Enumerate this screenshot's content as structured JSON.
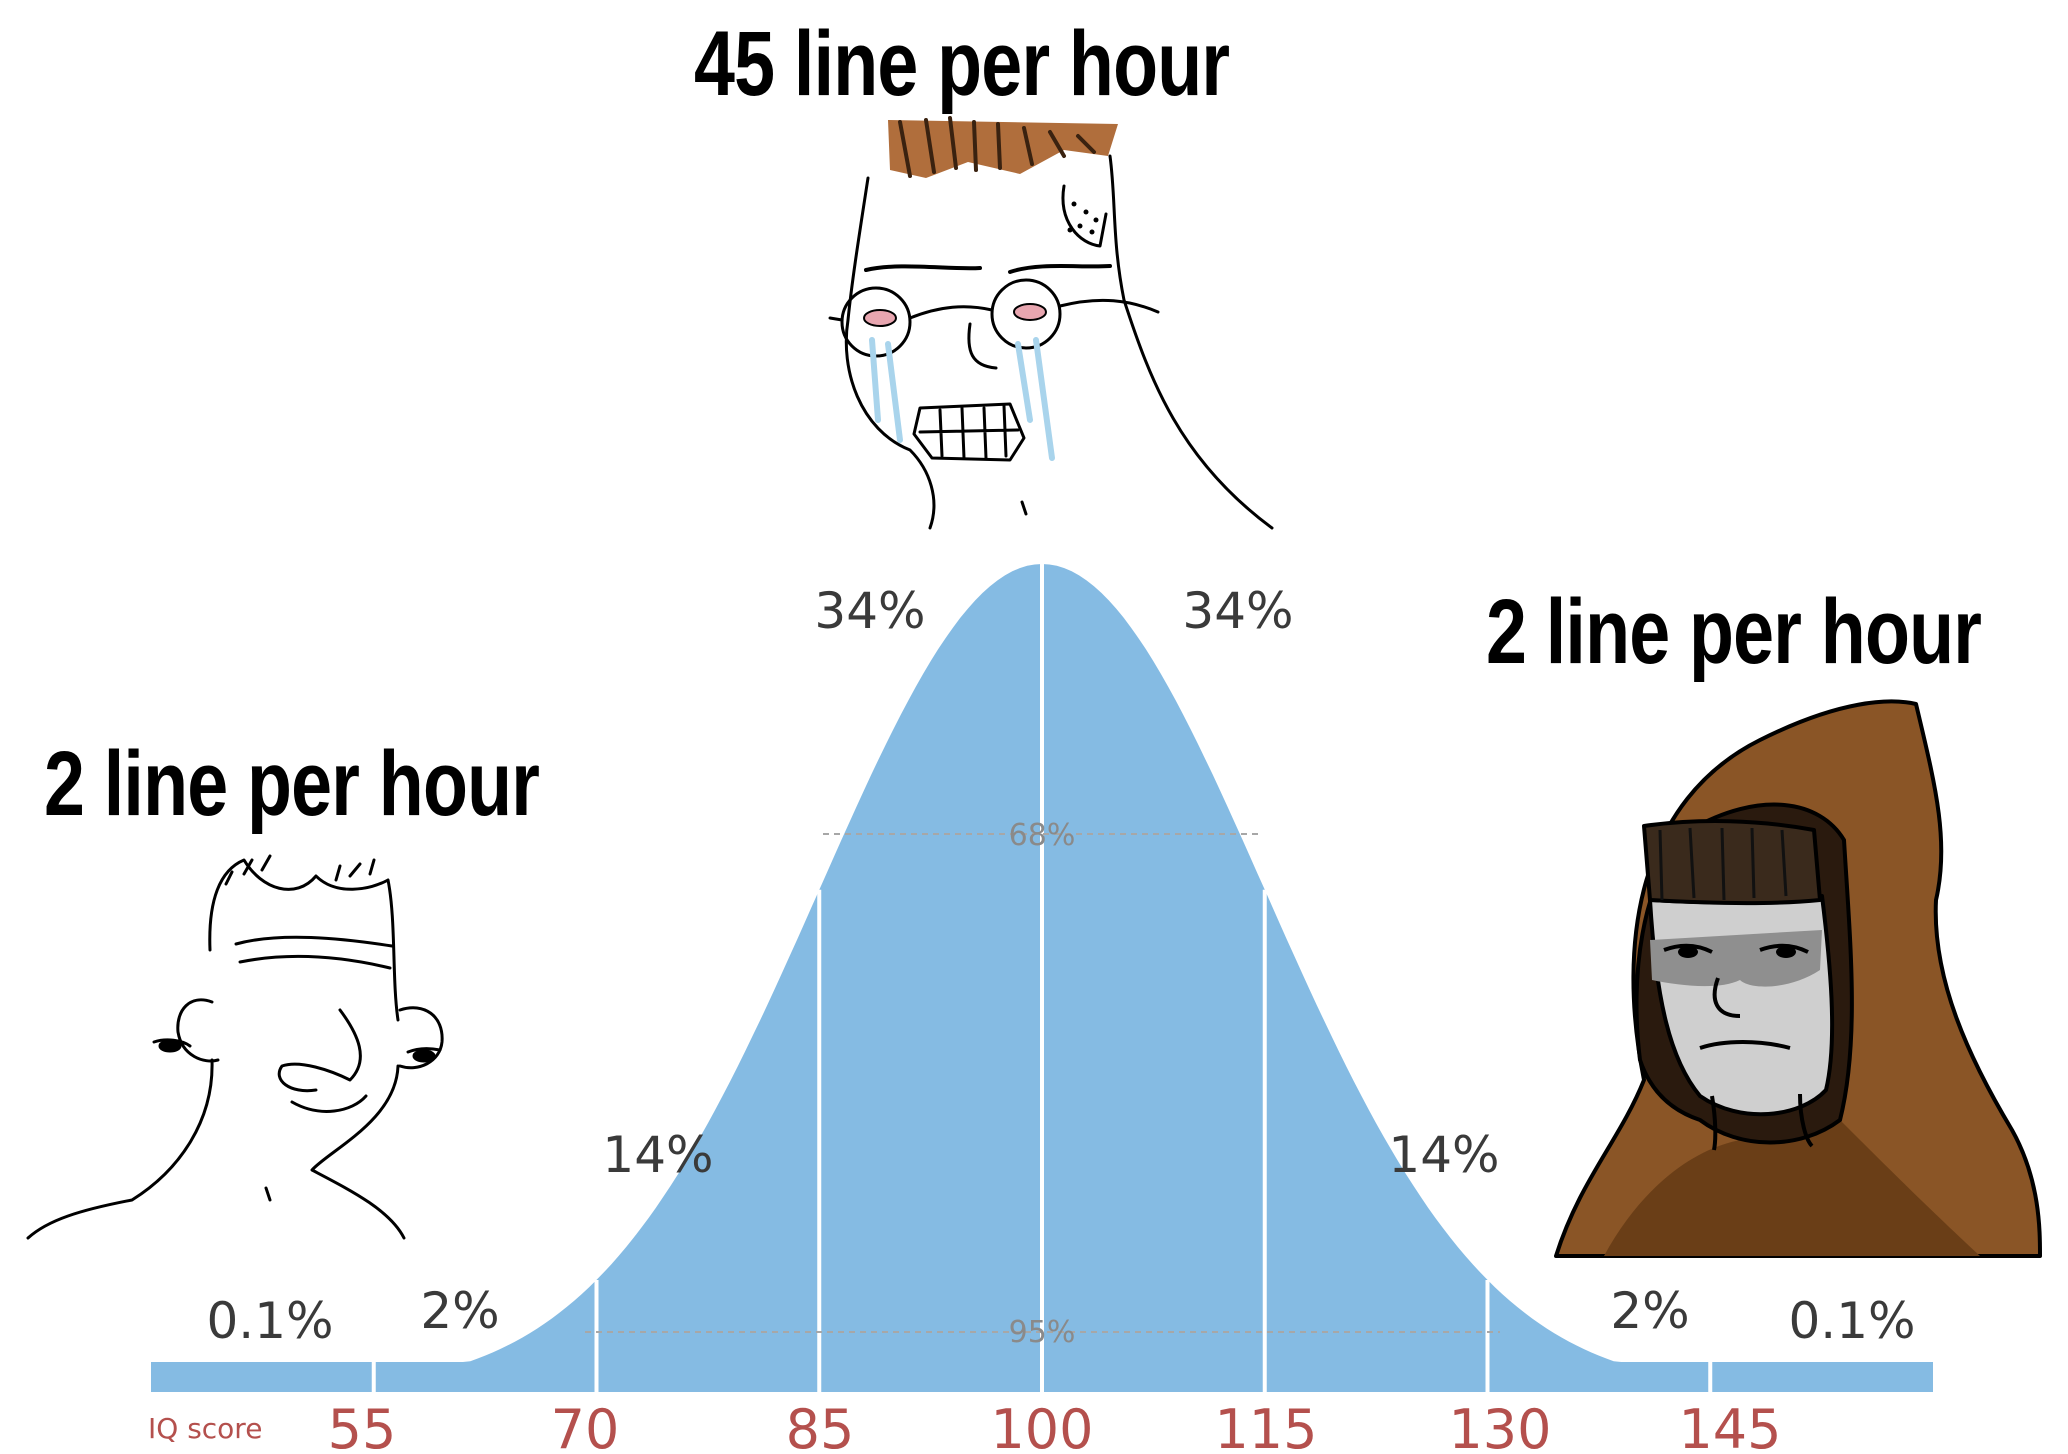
{
  "captions": {
    "top": "45 line per hour",
    "left": "2 line per hour",
    "right": "2 line per hour"
  },
  "chart_data": {
    "type": "area",
    "xlabel": "IQ score",
    "x_ticks": [
      55,
      70,
      85,
      100,
      115,
      130,
      145
    ],
    "segments": [
      {
        "label": "0.1%"
      },
      {
        "label": "2%"
      },
      {
        "label": "14%"
      },
      {
        "label": "34%"
      },
      {
        "label": "34%"
      },
      {
        "label": "14%"
      },
      {
        "label": "2%"
      },
      {
        "label": "0.1%"
      }
    ],
    "intervals": [
      {
        "label": "68%",
        "from": 85,
        "to": 115
      },
      {
        "label": "95%",
        "from": 70,
        "to": 130
      }
    ],
    "xlim": [
      40,
      160
    ],
    "mean": 100,
    "sd": 15
  },
  "colors": {
    "curve": "#85bbe3",
    "tick_text": "#b4504d",
    "hair_top": "#b06e3c",
    "hood": "#8a5526",
    "tears": "#a9d4ec"
  },
  "characters": {
    "left": "wojak-smiling-brainlet",
    "top": "wojak-crying-glasses",
    "right": "wojak-hooded-monk"
  }
}
